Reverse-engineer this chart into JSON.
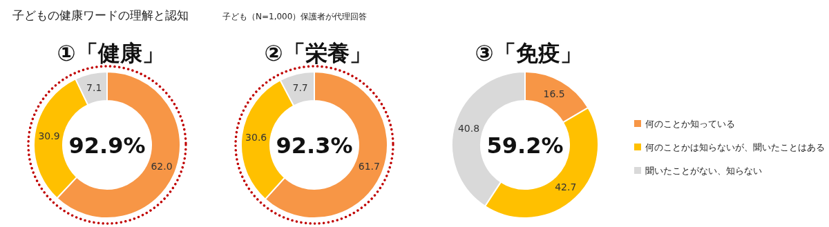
{
  "chart_data": [
    {
      "type": "donut",
      "title": "①「健康」",
      "subtitle": "子どもの健康ワードの理解と認知",
      "annotations": [
        "子ども（N=1,000）保護者が代理回答",
        "92.9%"
      ],
      "categories": [
        null,
        null,
        null
      ],
      "values": [
        62.0,
        30.9,
        7.1
      ],
      "value_labels": [
        "62.0",
        "30.9",
        "7.1"
      ],
      "colors": [
        "#f79646",
        "#ffc000",
        "#d9d9d9"
      ]
    },
    {
      "type": "donut",
      "title": "②「栄養」",
      "annotations": [
        "92.3%"
      ],
      "categories": [
        null,
        null,
        null
      ],
      "values": [
        61.7,
        30.6,
        7.7
      ],
      "value_labels": [
        "61.7",
        "30.6",
        "7.7"
      ],
      "colors": [
        "#f79646",
        "#ffc000",
        "#d9d9d9"
      ]
    },
    {
      "type": "donut",
      "title": "③「免疫」",
      "annotations": [
        "59.2%"
      ],
      "categories": [
        "何のことか知っている",
        "何のことかは知らないが、聞いたことはある",
        "聞いたことがない、知らない"
      ],
      "values": [
        16.5,
        42.7,
        40.8
      ],
      "value_labels": [
        "16.5",
        "42.7",
        "40.8"
      ],
      "colors": [
        "#f79646",
        "#ffc000",
        "#d9d9d9"
      ],
      "legend": "right"
    }
  ]
}
